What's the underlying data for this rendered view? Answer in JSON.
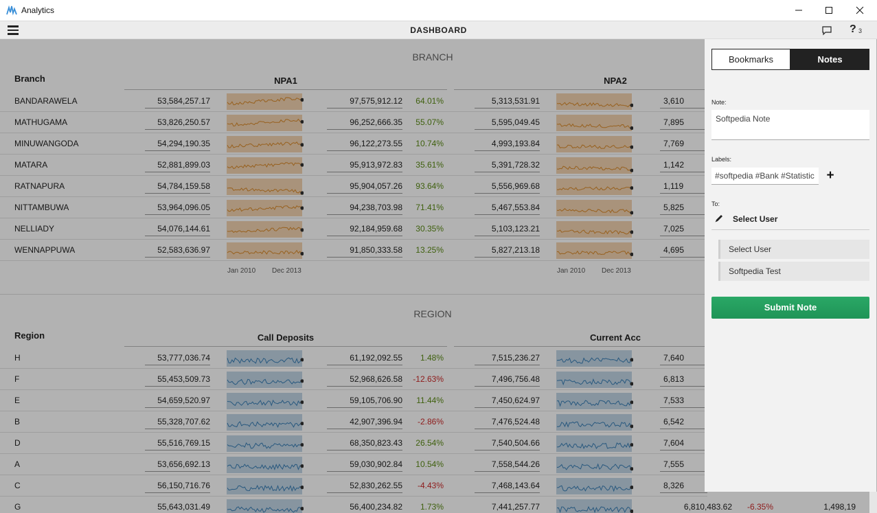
{
  "window": {
    "title": "Analytics",
    "minimize_icon": "minimize-icon",
    "maximize_icon": "maximize-icon",
    "close_icon": "close-icon"
  },
  "topbar": {
    "title": "DASHBOARD",
    "menu_icon": "hamburger-icon",
    "chat_icon": "chat-bubble-icon",
    "help_icon": "?",
    "help_count": "3"
  },
  "branch": {
    "section_title": "BRANCH",
    "group_label": "Branch",
    "col1_title": "NPA1",
    "col2_title": "NPA2",
    "axis_start": "Jan 2010",
    "axis_end": "Dec 2013",
    "rows": [
      {
        "name": "BANDARAWELA",
        "v1": "53,584,257.17",
        "v2": "97,575,912.12",
        "pct": "64.01%",
        "v3": "5,313,531.91",
        "v4": "3,610"
      },
      {
        "name": "MATHUGAMA",
        "v1": "53,826,250.57",
        "v2": "96,252,666.35",
        "pct": "55.07%",
        "v3": "5,595,049.45",
        "v4": "7,895"
      },
      {
        "name": "MINUWANGODA",
        "v1": "54,294,190.35",
        "v2": "96,122,273.55",
        "pct": "10.74%",
        "v3": "4,993,193.84",
        "v4": "7,769"
      },
      {
        "name": "MATARA",
        "v1": "52,881,899.03",
        "v2": "95,913,972.83",
        "pct": "35.61%",
        "v3": "5,391,728.32",
        "v4": "1,142"
      },
      {
        "name": "RATNAPURA",
        "v1": "54,784,159.58",
        "v2": "95,904,057.26",
        "pct": "93.64%",
        "v3": "5,556,969.68",
        "v4": "1,119"
      },
      {
        "name": "NITTAMBUWA",
        "v1": "53,964,096.05",
        "v2": "94,238,703.98",
        "pct": "71.41%",
        "v3": "5,467,553.84",
        "v4": "5,825"
      },
      {
        "name": "NELLIADY",
        "v1": "54,076,144.61",
        "v2": "92,184,959.68",
        "pct": "30.35%",
        "v3": "5,103,123.21",
        "v4": "7,025"
      },
      {
        "name": "WENNAPPUWA",
        "v1": "52,583,636.97",
        "v2": "91,850,333.58",
        "pct": "13.25%",
        "v3": "5,827,213.18",
        "v4": "4,695"
      }
    ]
  },
  "region": {
    "section_title": "REGION",
    "group_label": "Region",
    "col1_title": "Call Deposits",
    "col2_title": "Current Acc",
    "rows": [
      {
        "name": "H",
        "v1": "53,777,036.74",
        "v2": "61,192,092.55",
        "pct": "1.48%",
        "neg": false,
        "v3": "7,515,236.27",
        "v4": "7,640"
      },
      {
        "name": "F",
        "v1": "55,453,509.73",
        "v2": "52,968,626.58",
        "pct": "-12.63%",
        "neg": true,
        "v3": "7,496,756.48",
        "v4": "6,813"
      },
      {
        "name": "E",
        "v1": "54,659,520.97",
        "v2": "59,105,706.90",
        "pct": "11.44%",
        "neg": false,
        "v3": "7,450,624.97",
        "v4": "7,533"
      },
      {
        "name": "B",
        "v1": "55,328,707.62",
        "v2": "42,907,396.94",
        "pct": "-2.86%",
        "neg": true,
        "v3": "7,476,524.48",
        "v4": "6,542"
      },
      {
        "name": "D",
        "v1": "55,516,769.15",
        "v2": "68,350,823.43",
        "pct": "26.54%",
        "neg": false,
        "v3": "7,540,504.66",
        "v4": "7,604"
      },
      {
        "name": "A",
        "v1": "53,656,692.13",
        "v2": "59,030,902.84",
        "pct": "10.54%",
        "neg": false,
        "v3": "7,558,544.26",
        "v4": "7,555"
      },
      {
        "name": "C",
        "v1": "56,150,716.76",
        "v2": "52,830,262.55",
        "pct": "-4.43%",
        "neg": true,
        "v3": "7,468,143.64",
        "v4": "8,326"
      },
      {
        "name": "G",
        "v1": "55,643,031.49",
        "v2": "56,400,234.82",
        "pct": "1.73%",
        "neg": false,
        "v3": "7,441,257.77",
        "v4": "6,810,483.62",
        "pct2": "-6.35%",
        "v5": "1,498,19"
      }
    ]
  },
  "notes_panel": {
    "tab_bookmarks": "Bookmarks",
    "tab_notes": "Notes",
    "note_label": "Note:",
    "note_value": "Softpedia Note",
    "labels_label": "Labels:",
    "labels_value": "#softpedia #Bank #Statistic",
    "add_icon": "+",
    "to_label": "To:",
    "select_user": "Select User",
    "options": [
      "Select User",
      "Softpedia Test"
    ],
    "submit": "Submit Note"
  },
  "colors": {
    "npa_spark": "#d98a2b",
    "npa_fill": "#f2d3b0",
    "region_spark": "#3a7fb5",
    "region_fill": "#c2d6e6",
    "positive": "#5a8a14",
    "negative": "#cc2a2a",
    "submit": "#26a160"
  }
}
